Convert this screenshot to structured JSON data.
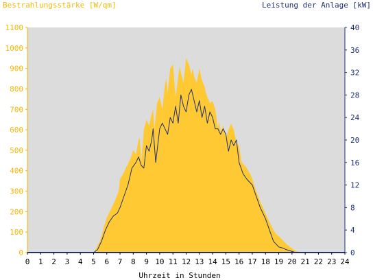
{
  "chart_data": {
    "type": "area",
    "ylabel_left": "Bestrahlungsstärke [W/qm]",
    "ylabel_right": "Leistung der Anlage [kW]",
    "xlabel": "Uhrzeit in Stunden",
    "xlim": [
      0,
      24
    ],
    "ylim_left": [
      0,
      1100
    ],
    "ylim_right": [
      0,
      40
    ],
    "x_ticks": [
      "0",
      "1",
      "2",
      "3",
      "4",
      "5",
      "6",
      "7",
      "8",
      "9",
      "10",
      "11",
      "12",
      "13",
      "14",
      "15",
      "16",
      "17",
      "18",
      "19",
      "20",
      "21",
      "22",
      "23",
      "24"
    ],
    "y_ticks_left": [
      "0",
      "100",
      "200",
      "300",
      "400",
      "500",
      "600",
      "700",
      "800",
      "900",
      "1000",
      "1100"
    ],
    "y_ticks_right": [
      "0",
      "4",
      "8",
      "12",
      "16",
      "20",
      "24",
      "28",
      "32",
      "36",
      "40"
    ],
    "grid": false,
    "colors": {
      "irradiance": "#ffc933",
      "power": "#1f2f73",
      "plot_bg": "#dcdcdc",
      "left_axis": "#f5b800",
      "right_axis": "#1f2f73"
    },
    "series": [
      {
        "axis": "left",
        "style": "area",
        "x": [
          0,
          5,
          5.2,
          5.5,
          5.8,
          6,
          6.3,
          6.6,
          6.9,
          7,
          7.2,
          7.5,
          7.8,
          8,
          8.2,
          8.4,
          8.5,
          8.6,
          8.8,
          9,
          9.2,
          9.4,
          9.5,
          9.6,
          9.8,
          10,
          10.2,
          10.4,
          10.5,
          10.6,
          10.8,
          11,
          11.2,
          11.4,
          11.5,
          11.6,
          11.8,
          12,
          12.2,
          12.4,
          12.5,
          12.6,
          12.8,
          13,
          13.2,
          13.4,
          13.5,
          13.6,
          13.8,
          14,
          14.2,
          14.4,
          14.5,
          14.6,
          14.8,
          15,
          15.2,
          15.4,
          15.6,
          15.8,
          16,
          16.2,
          16.5,
          16.8,
          17,
          17.3,
          17.6,
          18,
          18.3,
          18.6,
          18.8,
          19,
          19.3,
          19.6,
          20,
          20.3,
          20.6,
          21,
          24
        ],
        "y": [
          0,
          0,
          20,
          60,
          130,
          170,
          210,
          250,
          300,
          360,
          380,
          420,
          460,
          500,
          480,
          550,
          560,
          440,
          600,
          650,
          620,
          680,
          700,
          600,
          730,
          760,
          700,
          820,
          850,
          780,
          900,
          920,
          760,
          860,
          910,
          880,
          830,
          950,
          920,
          870,
          900,
          860,
          830,
          900,
          840,
          810,
          780,
          760,
          730,
          740,
          700,
          610,
          640,
          590,
          620,
          560,
          600,
          630,
          600,
          540,
          520,
          440,
          420,
          390,
          360,
          300,
          250,
          190,
          150,
          110,
          90,
          80,
          60,
          40,
          20,
          8,
          2,
          0,
          0
        ]
      },
      {
        "axis": "right",
        "style": "line",
        "x": [
          0,
          5,
          5.3,
          5.6,
          5.9,
          6.2,
          6.5,
          6.8,
          7,
          7.3,
          7.6,
          7.9,
          8.2,
          8.4,
          8.6,
          8.8,
          9,
          9.2,
          9.4,
          9.5,
          9.7,
          10,
          10.2,
          10.4,
          10.6,
          10.8,
          11,
          11.2,
          11.4,
          11.6,
          11.8,
          12,
          12.2,
          12.4,
          12.6,
          12.8,
          13,
          13.2,
          13.4,
          13.6,
          13.8,
          14,
          14.2,
          14.4,
          14.6,
          14.8,
          15,
          15.2,
          15.4,
          15.6,
          15.8,
          16,
          16.3,
          16.6,
          17,
          17.3,
          17.6,
          18,
          18.3,
          18.6,
          18.8,
          19,
          19.3,
          19.6,
          20,
          20.3,
          20.6,
          21,
          24
        ],
        "y": [
          0,
          0,
          0.5,
          2,
          4,
          5.5,
          6.5,
          7,
          8,
          10,
          12,
          15,
          16,
          17,
          15.5,
          15,
          19,
          18,
          20,
          22,
          16,
          22,
          23,
          22,
          21,
          24,
          23,
          26,
          23,
          28,
          26,
          25,
          28,
          29,
          27,
          25,
          27,
          24,
          26,
          23,
          25,
          24,
          22,
          22,
          21,
          22,
          21,
          18,
          20,
          19,
          20,
          16,
          14,
          13,
          12,
          10,
          8,
          6,
          4,
          2,
          1.5,
          1,
          0.8,
          0.5,
          0.2,
          0,
          0,
          0,
          0
        ]
      }
    ]
  }
}
